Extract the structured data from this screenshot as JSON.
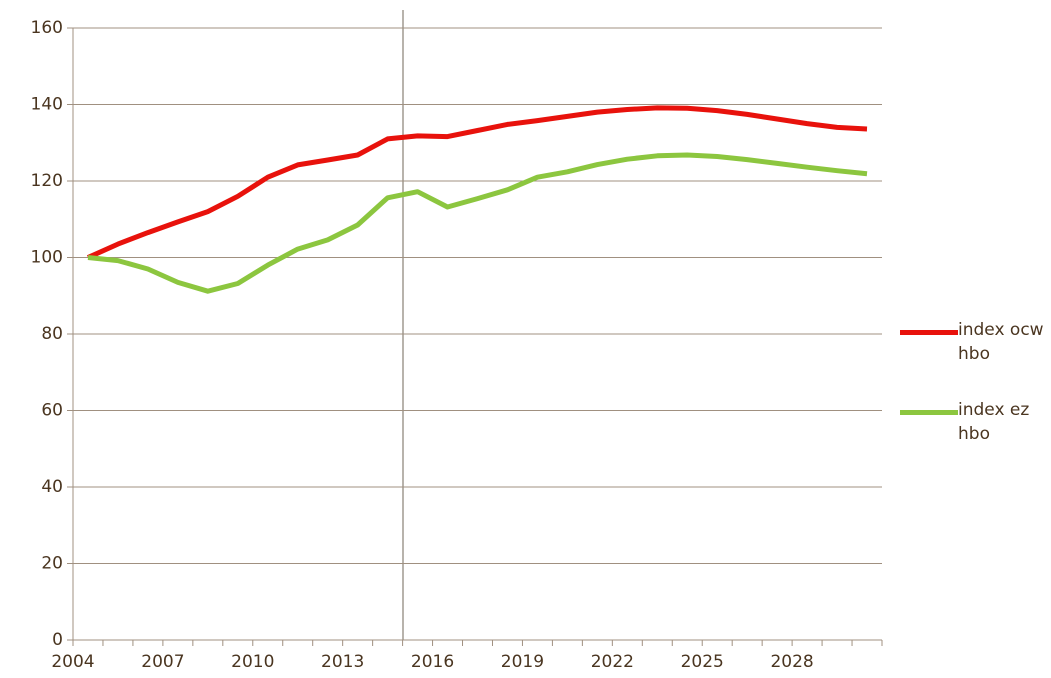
{
  "chart_data": {
    "type": "line",
    "categories": [
      "2004",
      null,
      null,
      "2007",
      null,
      null,
      "2010",
      null,
      null,
      "2013",
      null,
      null,
      "2016",
      null,
      null,
      "2019",
      null,
      null,
      "2022",
      null,
      null,
      "2025",
      null,
      null,
      "2028",
      null,
      null
    ],
    "series": [
      {
        "name": "index ocw hbo",
        "color": "#e8120c",
        "values": [
          100,
          103.5,
          106.5,
          109.3,
          112,
          116,
          121,
          124.2,
          125.5,
          126.8,
          131,
          131.8,
          131.6,
          133.2,
          134.8,
          135.8,
          136.9,
          138,
          138.7,
          139.1,
          139,
          138.4,
          137.4,
          136.2,
          135,
          134,
          133.6
        ]
      },
      {
        "name": "index ez hbo",
        "color": "#8cc63f",
        "values": [
          100,
          99.2,
          97,
          93.5,
          91.2,
          93.2,
          98,
          102.2,
          104.6,
          108.5,
          115.6,
          117.2,
          113.2,
          115.4,
          117.7,
          121,
          122.4,
          124.3,
          125.7,
          126.6,
          126.8,
          126.4,
          125.6,
          124.6,
          123.6,
          122.7,
          121.9
        ]
      }
    ],
    "ylim": [
      0,
      160
    ],
    "yticks": [
      0,
      20,
      40,
      60,
      80,
      100,
      120,
      140,
      160
    ],
    "grid": true
  }
}
